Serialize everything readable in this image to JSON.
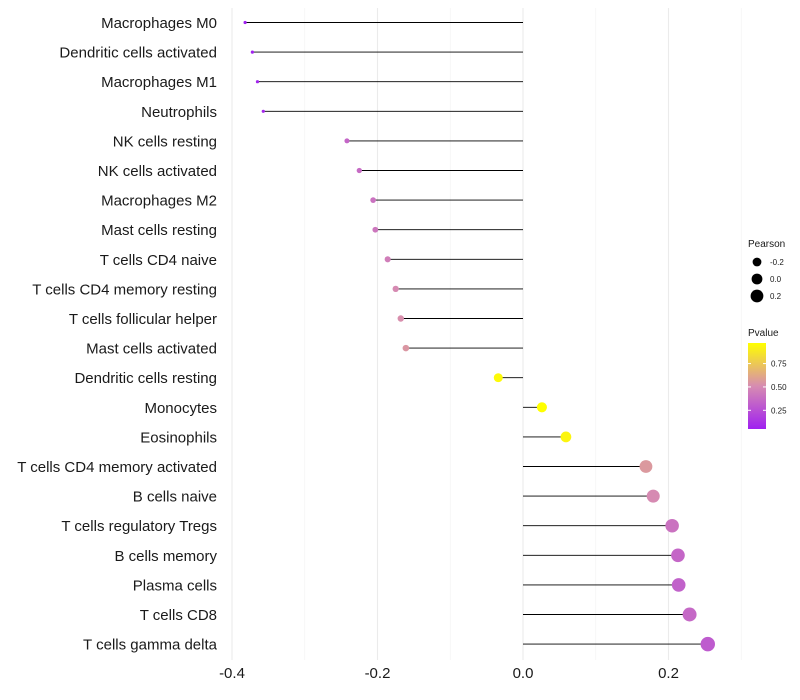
{
  "chart_data": {
    "type": "lollipop",
    "title": "",
    "xlabel": "",
    "ylabel": "",
    "xlim": [
      -0.4,
      0.35
    ],
    "xticks": [
      -0.4,
      -0.2,
      0.0,
      0.2
    ],
    "xtick_labels": [
      "-0.4",
      "-0.2",
      "0.0",
      "0.2"
    ],
    "grid": true,
    "categories": [
      "Macrophages M0",
      "Dendritic cells activated",
      "Macrophages M1",
      "Neutrophils",
      "NK cells resting",
      "NK cells activated",
      "Macrophages M2",
      "Mast cells resting",
      "T cells CD4 naive",
      "T cells CD4 memory resting",
      "T cells follicular helper",
      "Mast cells activated",
      "Dendritic cells resting",
      "Monocytes",
      "Eosinophils",
      "T cells CD4 memory activated",
      "B cells naive",
      "T cells regulatory  Tregs",
      "B cells memory",
      "Plasma cells",
      "T cells CD8",
      "T cells gamma delta"
    ],
    "pearson": [
      -0.382,
      -0.372,
      -0.365,
      -0.357,
      -0.242,
      -0.225,
      -0.206,
      -0.203,
      -0.186,
      -0.175,
      -0.168,
      -0.161,
      -0.034,
      0.026,
      0.059,
      0.169,
      0.179,
      0.205,
      0.213,
      0.214,
      0.229,
      0.254
    ],
    "pvalue": [
      0.05,
      0.06,
      0.07,
      0.08,
      0.35,
      0.37,
      0.4,
      0.42,
      0.45,
      0.5,
      0.52,
      0.55,
      0.95,
      0.97,
      0.93,
      0.56,
      0.5,
      0.4,
      0.35,
      0.33,
      0.36,
      0.3
    ],
    "legend": {
      "placement": "right",
      "size_title": "Pearson",
      "size_breaks": [
        -0.2,
        0.0,
        0.2
      ],
      "size_labels": [
        "-0.2",
        "0.0",
        "0.2"
      ],
      "color_title": "Pvalue",
      "color_breaks": [
        0.25,
        0.5,
        0.75
      ],
      "color_labels": [
        "0.25",
        "0.50",
        "0.75"
      ],
      "color_range": [
        0.05,
        0.97
      ],
      "color_low": "#a020f0",
      "color_mid": "#d78cb1",
      "color_high": "#ffff00"
    }
  }
}
